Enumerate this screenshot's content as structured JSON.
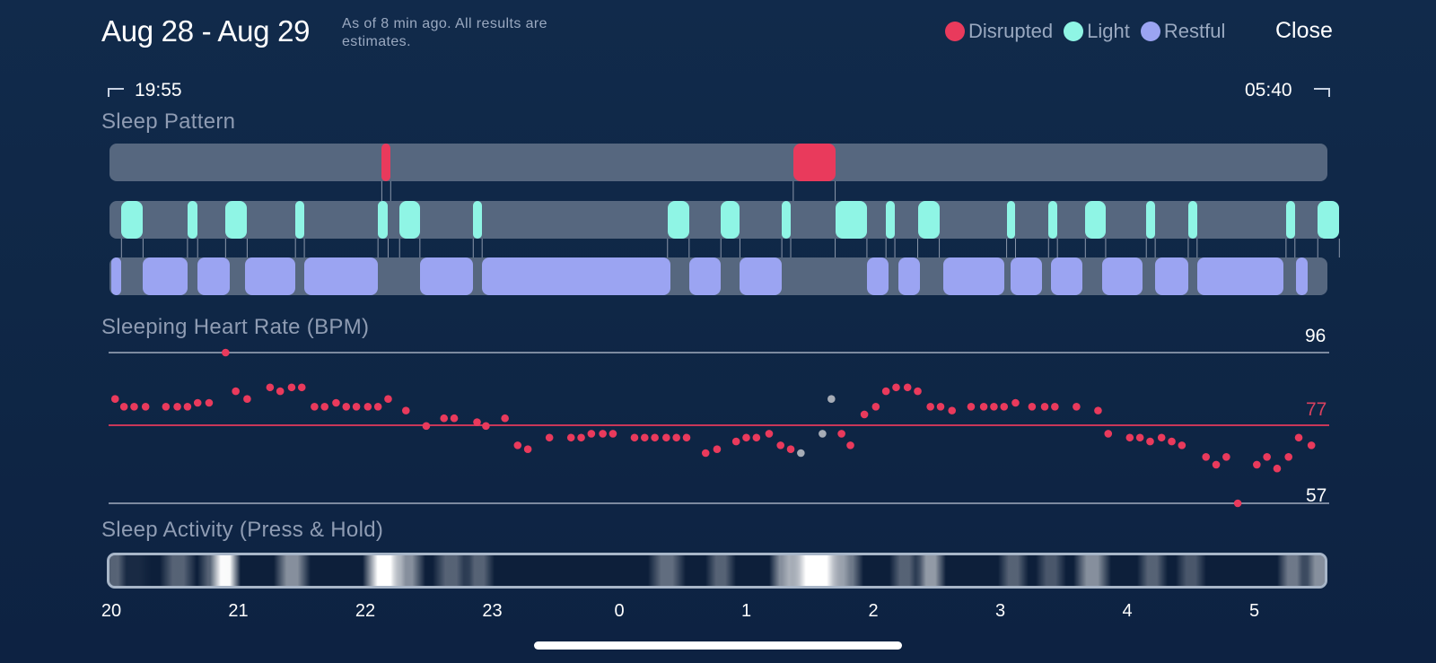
{
  "header": {
    "date_range": "Aug 28 - Aug 29",
    "note": "As of 8 min ago. All results are estimates.",
    "close_label": "Close"
  },
  "legend": [
    {
      "label": "Disrupted",
      "color": "#e93a5c"
    },
    {
      "label": "Light",
      "color": "#8ff5e5"
    },
    {
      "label": "Restful",
      "color": "#9ba4f2"
    }
  ],
  "times": {
    "start": "19:55",
    "end": "05:40"
  },
  "sections": {
    "sleep_pattern": "Sleep Pattern",
    "heart_rate": "Sleeping Heart Rate (BPM)",
    "activity": "Sleep Activity (Press & Hold)"
  },
  "heart_rate": {
    "max": "96",
    "avg": "77",
    "min": "57"
  },
  "hr_colors": {
    "normal": "#e93a5c",
    "uncertain": "#a6acb6"
  },
  "axis_ticks": [
    "20",
    "21",
    "22",
    "23",
    "0",
    "1",
    "2",
    "3",
    "4",
    "5"
  ],
  "timeline": {
    "start_hour": 20.0,
    "end_hour": 29.67
  },
  "sleep_stages": {
    "disrupted": [
      [
        22.13,
        22.2
      ],
      [
        25.37,
        25.7
      ]
    ],
    "light": [
      [
        20.08,
        20.25
      ],
      [
        20.6,
        20.68
      ],
      [
        20.9,
        21.07
      ],
      [
        21.45,
        21.52
      ],
      [
        22.1,
        22.18
      ],
      [
        22.27,
        22.43
      ],
      [
        22.85,
        22.92
      ],
      [
        24.38,
        24.55
      ],
      [
        24.8,
        24.95
      ],
      [
        25.28,
        25.35
      ],
      [
        25.7,
        25.95
      ],
      [
        26.1,
        26.17
      ],
      [
        26.35,
        26.52
      ],
      [
        27.05,
        27.12
      ],
      [
        27.38,
        27.45
      ],
      [
        27.67,
        27.83
      ],
      [
        28.15,
        28.22
      ],
      [
        28.48,
        28.55
      ],
      [
        29.25,
        29.32
      ],
      [
        29.5,
        29.67
      ]
    ],
    "restful": [
      [
        20.0,
        20.08
      ],
      [
        20.25,
        20.6
      ],
      [
        20.68,
        20.93
      ],
      [
        21.05,
        21.45
      ],
      [
        21.52,
        22.1
      ],
      [
        22.43,
        22.85
      ],
      [
        22.92,
        24.4
      ],
      [
        24.55,
        24.8
      ],
      [
        24.95,
        25.28
      ],
      [
        25.95,
        26.12
      ],
      [
        26.2,
        26.37
      ],
      [
        26.55,
        27.03
      ],
      [
        27.08,
        27.33
      ],
      [
        27.4,
        27.65
      ],
      [
        27.8,
        28.12
      ],
      [
        28.22,
        28.48
      ],
      [
        28.55,
        29.23
      ],
      [
        29.33,
        29.42
      ]
    ]
  },
  "hr_points": [
    [
      20.03,
      84,
      0
    ],
    [
      20.1,
      82,
      0
    ],
    [
      20.18,
      82,
      0
    ],
    [
      20.27,
      82,
      0
    ],
    [
      20.43,
      82,
      0
    ],
    [
      20.52,
      82,
      0
    ],
    [
      20.6,
      82,
      0
    ],
    [
      20.68,
      83,
      0
    ],
    [
      20.77,
      83,
      0
    ],
    [
      20.9,
      96,
      0
    ],
    [
      20.98,
      86,
      0
    ],
    [
      21.07,
      84,
      0
    ],
    [
      21.25,
      87,
      0
    ],
    [
      21.33,
      86,
      0
    ],
    [
      21.42,
      87,
      0
    ],
    [
      21.5,
      87,
      0
    ],
    [
      21.6,
      82,
      0
    ],
    [
      21.68,
      82,
      0
    ],
    [
      21.77,
      83,
      0
    ],
    [
      21.85,
      82,
      0
    ],
    [
      21.93,
      82,
      0
    ],
    [
      22.02,
      82,
      0
    ],
    [
      22.1,
      82,
      0
    ],
    [
      22.18,
      84,
      0
    ],
    [
      22.32,
      81,
      0
    ],
    [
      22.48,
      77,
      0
    ],
    [
      22.62,
      79,
      0
    ],
    [
      22.7,
      79,
      0
    ],
    [
      22.88,
      78,
      0
    ],
    [
      22.95,
      77,
      0
    ],
    [
      23.1,
      79,
      0
    ],
    [
      23.2,
      72,
      0
    ],
    [
      23.28,
      71,
      0
    ],
    [
      23.45,
      74,
      0
    ],
    [
      23.62,
      74,
      0
    ],
    [
      23.7,
      74,
      0
    ],
    [
      23.78,
      75,
      0
    ],
    [
      23.87,
      75,
      0
    ],
    [
      23.95,
      75,
      0
    ],
    [
      24.12,
      74,
      0
    ],
    [
      24.2,
      74,
      0
    ],
    [
      24.28,
      74,
      0
    ],
    [
      24.37,
      74,
      0
    ],
    [
      24.45,
      74,
      0
    ],
    [
      24.53,
      74,
      0
    ],
    [
      24.68,
      70,
      0
    ],
    [
      24.77,
      71,
      0
    ],
    [
      24.92,
      73,
      0
    ],
    [
      25.0,
      74,
      0
    ],
    [
      25.08,
      74,
      0
    ],
    [
      25.18,
      75,
      0
    ],
    [
      25.27,
      72,
      0
    ],
    [
      25.35,
      71,
      0
    ],
    [
      25.43,
      70,
      1
    ],
    [
      25.6,
      75,
      1
    ],
    [
      25.67,
      84,
      1
    ],
    [
      25.75,
      75,
      0
    ],
    [
      25.82,
      72,
      0
    ],
    [
      25.93,
      80,
      0
    ],
    [
      26.02,
      82,
      0
    ],
    [
      26.1,
      86,
      0
    ],
    [
      26.18,
      87,
      0
    ],
    [
      26.27,
      87,
      0
    ],
    [
      26.35,
      86,
      0
    ],
    [
      26.45,
      82,
      0
    ],
    [
      26.53,
      82,
      0
    ],
    [
      26.62,
      81,
      0
    ],
    [
      26.77,
      82,
      0
    ],
    [
      26.87,
      82,
      0
    ],
    [
      26.95,
      82,
      0
    ],
    [
      27.03,
      82,
      0
    ],
    [
      27.12,
      83,
      0
    ],
    [
      27.25,
      82,
      0
    ],
    [
      27.35,
      82,
      0
    ],
    [
      27.43,
      82,
      0
    ],
    [
      27.6,
      82,
      0
    ],
    [
      27.77,
      81,
      0
    ],
    [
      27.85,
      75,
      0
    ],
    [
      28.02,
      74,
      0
    ],
    [
      28.1,
      74,
      0
    ],
    [
      28.18,
      73,
      0
    ],
    [
      28.27,
      74,
      0
    ],
    [
      28.35,
      73,
      0
    ],
    [
      28.43,
      72,
      0
    ],
    [
      28.62,
      69,
      0
    ],
    [
      28.7,
      67,
      0
    ],
    [
      28.78,
      69,
      0
    ],
    [
      28.87,
      57,
      0
    ],
    [
      29.02,
      67,
      0
    ],
    [
      29.1,
      69,
      0
    ],
    [
      29.18,
      66,
      0
    ],
    [
      29.27,
      69,
      0
    ],
    [
      29.35,
      74,
      0
    ],
    [
      29.45,
      72,
      0
    ]
  ],
  "activity_bands": [
    [
      20.0,
      20.05,
      0.3
    ],
    [
      20.1,
      20.25,
      0.05
    ],
    [
      20.45,
      20.6,
      0.3
    ],
    [
      20.75,
      20.85,
      0.3
    ],
    [
      20.85,
      20.95,
      0.98
    ],
    [
      21.35,
      21.5,
      0.5
    ],
    [
      22.05,
      22.25,
      1.0
    ],
    [
      22.25,
      22.4,
      0.5
    ],
    [
      22.6,
      22.75,
      0.3
    ],
    [
      22.85,
      22.95,
      0.3
    ],
    [
      24.3,
      24.45,
      0.35
    ],
    [
      24.75,
      24.85,
      0.3
    ],
    [
      25.25,
      25.35,
      0.5
    ],
    [
      25.35,
      25.75,
      1.0
    ],
    [
      25.75,
      25.85,
      0.4
    ],
    [
      26.2,
      26.3,
      0.3
    ],
    [
      26.4,
      26.5,
      0.55
    ],
    [
      27.05,
      27.15,
      0.3
    ],
    [
      27.35,
      27.45,
      0.25
    ],
    [
      27.65,
      27.8,
      0.5
    ],
    [
      28.15,
      28.25,
      0.3
    ],
    [
      28.45,
      28.55,
      0.25
    ],
    [
      29.25,
      29.35,
      0.4
    ],
    [
      29.45,
      29.6,
      0.5
    ]
  ]
}
